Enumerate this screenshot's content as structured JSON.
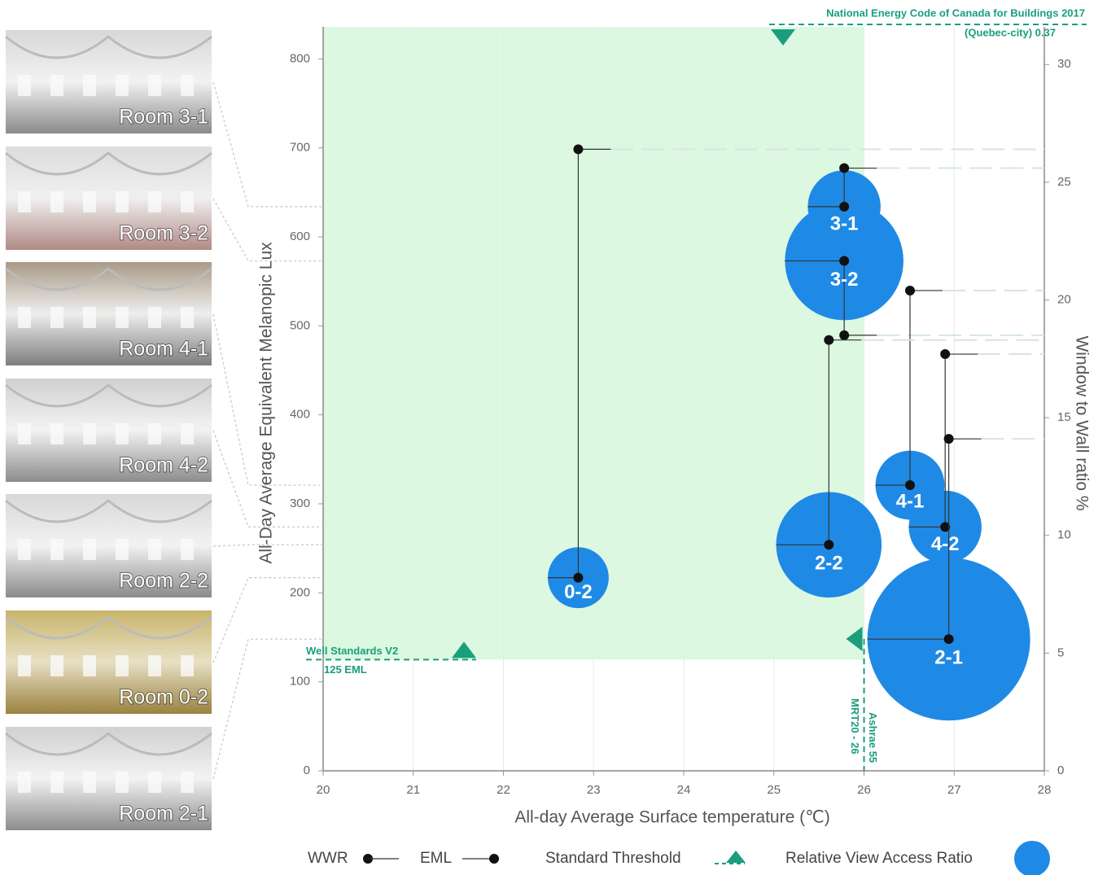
{
  "chart_data": {
    "type": "bubble",
    "x_label": "All-day Average Surface temperature (℃)",
    "y_label": "All-Day Average Equivalent Melanopic Lux",
    "y2_label": "Window to Wall ratio %",
    "rooms": [
      "Room 3-1",
      "Room 3-2",
      "Room 4-1",
      "Room 4-2",
      "Room 2-2",
      "Room 0-2",
      "Room 2-1"
    ],
    "labels": [
      "3-1",
      "3-2",
      "4-1",
      "4-2",
      "2-2",
      "0-2",
      "2-1"
    ],
    "x": [
      25.78,
      25.78,
      26.51,
      26.9,
      25.61,
      22.83,
      26.94
    ],
    "series": [
      {
        "name": "EML",
        "color": "#1f8ae6",
        "values": [
          634,
          573,
          321,
          274,
          254,
          217,
          148
        ],
        "size_name": "Relative View Access Ratio",
        "sizes": [
          0.2,
          0.53,
          0.18,
          0.2,
          0.42,
          0.14,
          1.0
        ]
      },
      {
        "name": "WWR",
        "axis": "y2",
        "values": [
          25.6,
          18.5,
          20.4,
          17.7,
          18.3,
          26.4,
          14.1
        ]
      }
    ],
    "threshold_legend": "Standard Threshold",
    "thresholds": {
      "well": {
        "name": "Well Standards V2",
        "label": "125 EML",
        "value": 125
      },
      "ashrae": {
        "name": "Ashrae 55",
        "label": "MRT20 - 26",
        "range": [
          20,
          26
        ]
      },
      "necb": {
        "name": "National Energy Code of Canada for Buildings 2017",
        "label": "(Quebec-city) 0.37"
      }
    },
    "threshold_color": "#1a9e7e",
    "band_color": "#d6f7dc",
    "xlim": [
      20,
      28
    ],
    "xticks": [
      20,
      21,
      22,
      23,
      24,
      25,
      26,
      27,
      28
    ],
    "ylim": [
      0,
      836
    ],
    "yticks": [
      0,
      100,
      200,
      300,
      400,
      500,
      600,
      700,
      800
    ],
    "y2lim": [
      0,
      31.6
    ],
    "y2ticks": [
      0,
      5,
      10,
      15,
      20,
      25,
      30
    ],
    "grid": "x"
  }
}
